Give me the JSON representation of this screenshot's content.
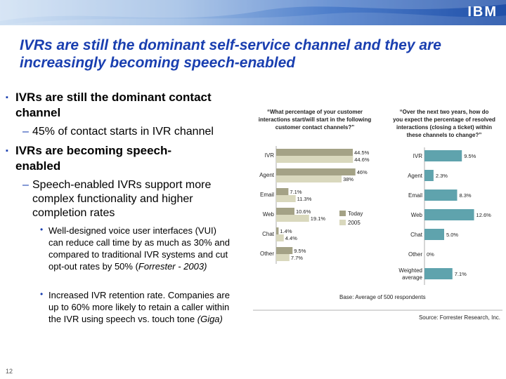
{
  "header": {
    "logo_text": "IBM",
    "colors": {
      "banner_dark": "#1f4fa8",
      "banner_light": "#cfe0f3",
      "title": "#1a3fb0"
    }
  },
  "title": {
    "line1": "IVRs are still the dominant self-service channel and they are",
    "line2": "increasingly becoming speech-enabled"
  },
  "bullets": {
    "b1": {
      "marker": "▪",
      "line1": "IVRs are still the dominant contact",
      "line2": "channel"
    },
    "b1_sub": {
      "marker": "–",
      "text": "45% of contact starts in IVR channel"
    },
    "b2": {
      "marker": "▪",
      "line1": "IVRs are becoming speech-",
      "line2": "enabled"
    },
    "b2_sub": {
      "marker": "–",
      "line1": "Speech-enabled IVRs support more",
      "line2": "complex functionality and higher",
      "line3": "completion rates"
    },
    "b2_d1": {
      "marker": "•",
      "line1": "Well-designed voice user interfaces (VUI)",
      "line2": "can reduce call time by as much as 30% and",
      "line3": "compared to traditional IVR systems and cut",
      "line4a": "opt-out rates by 50% (",
      "line4b": "Forrester - 2003)"
    },
    "b2_d2": {
      "marker": "•",
      "line1": "Increased IVR retention rate. Companies are",
      "line2": "up to 60% more likely to retain a caller within",
      "line3a": "the IVR using speech vs. touch tone ",
      "line3b": "(Giga)"
    }
  },
  "page_number": "12",
  "chart_data": [
    {
      "type": "bar",
      "orientation": "horizontal",
      "title_lines": [
        "“What percentage of your customer",
        "interactions start/will start in the following",
        "customer contact channels?”"
      ],
      "categories": [
        "IVR",
        "Agent",
        "Email",
        "Web",
        "Chat",
        "Other"
      ],
      "series": [
        {
          "name": "Today",
          "color": "#a4a286",
          "values": [
            44.5,
            46,
            7.1,
            10.6,
            1.4,
            9.5
          ],
          "labels": [
            "44.5%",
            "46%",
            "7.1%",
            "10.6%",
            "1.4%",
            "9.5%"
          ]
        },
        {
          "name": "2005",
          "color": "#d9d8bd",
          "values": [
            44.6,
            38,
            11.3,
            19.1,
            4.4,
            7.7
          ],
          "labels": [
            "44.6%",
            "38%",
            "11.3%",
            "19.1%",
            "4.4%",
            "7.7%"
          ]
        }
      ],
      "legend_position": "right"
    },
    {
      "type": "bar",
      "orientation": "horizontal",
      "title_lines": [
        "“Over the next two years, how do",
        "you expect the percentage of resolved",
        "interactions (closing a ticket) within",
        "these channels to change?”"
      ],
      "categories": [
        "IVR",
        "Agent",
        "Email",
        "Web",
        "Chat",
        "Other",
        "Weighted average"
      ],
      "category_lines": [
        [
          "IVR"
        ],
        [
          "Agent"
        ],
        [
          "Email"
        ],
        [
          "Web"
        ],
        [
          "Chat"
        ],
        [
          "Other"
        ],
        [
          "Weighted",
          "average"
        ]
      ],
      "color": "#5fa3ad",
      "values": [
        9.5,
        2.3,
        8.3,
        12.6,
        5.0,
        0,
        7.1
      ],
      "labels": [
        "9.5%",
        "2.3%",
        "8.3%",
        "12.6%",
        "5.0%",
        "0%",
        "7.1%"
      ]
    }
  ],
  "chart_footer": {
    "base": "Base: Average of 500 respondents",
    "source": "Source: Forrester Research, Inc."
  }
}
